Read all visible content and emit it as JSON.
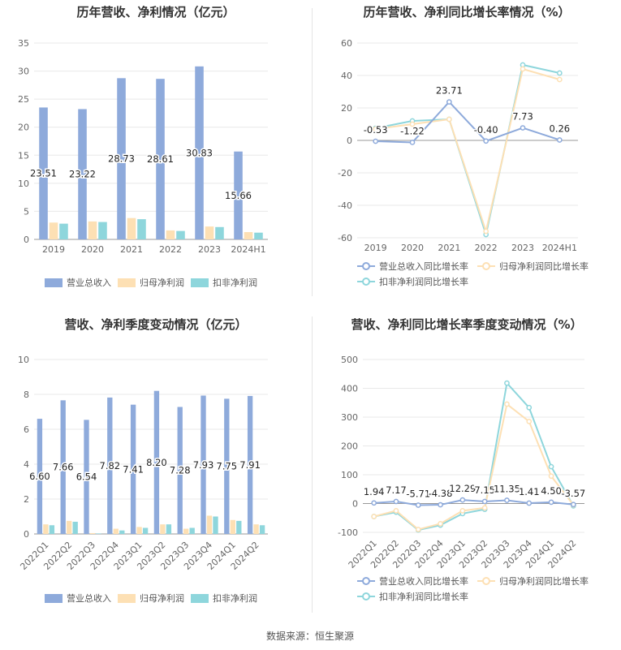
{
  "source": "数据来源：恒生聚源",
  "colors": {
    "revenue": "#8eaadb",
    "net_profit": "#fde0b4",
    "deducted_profit": "#8ed6dc",
    "revenue_line": "#8eaadb",
    "net_profit_line": "#fde0b4",
    "deducted_line": "#8ed6dc",
    "grid": "#e8e8e8",
    "axis": "#888888",
    "text": "#333333"
  },
  "chart_data": [
    {
      "id": "annual-revenue-profit",
      "type": "bar",
      "title": "历年营收、净利情况（亿元）",
      "categories": [
        "2019",
        "2020",
        "2021",
        "2022",
        "2023",
        "2024H1"
      ],
      "ylim": [
        0,
        35
      ],
      "yticks": [
        0,
        5,
        10,
        15,
        20,
        25,
        30,
        35
      ],
      "series": [
        {
          "name": "营业总收入",
          "values": [
            23.51,
            23.22,
            28.73,
            28.61,
            30.83,
            15.66
          ],
          "labels": [
            "23.51",
            "23.22",
            "28.73",
            "28.61",
            "30.83",
            "15.66"
          ]
        },
        {
          "name": "归母净利润",
          "values": [
            3.0,
            3.2,
            3.8,
            1.6,
            2.3,
            1.3
          ]
        },
        {
          "name": "扣非净利润",
          "values": [
            2.8,
            3.1,
            3.6,
            1.5,
            2.2,
            1.2
          ]
        }
      ],
      "legend": "bottom"
    },
    {
      "id": "annual-growth",
      "type": "line",
      "title": "历年营收、净利同比增长率情况（%）",
      "categories": [
        "2019",
        "2020",
        "2021",
        "2022",
        "2023",
        "2024H1"
      ],
      "ylim": [
        -60,
        60
      ],
      "yticks": [
        -60,
        -40,
        -20,
        0,
        20,
        40,
        60
      ],
      "series": [
        {
          "name": "营业总收入同比增长率",
          "values": [
            -0.53,
            -1.22,
            23.71,
            -0.4,
            7.73,
            0.26
          ],
          "labels": [
            "-0.53",
            "-1.22",
            "23.71",
            "-0.40",
            "7.73",
            "0.26"
          ]
        },
        {
          "name": "归母净利润同比增长率",
          "values": [
            7.0,
            10.0,
            13.0,
            -56.0,
            44.0,
            37.5
          ]
        },
        {
          "name": "扣非净利润同比增长率",
          "values": [
            7.5,
            12.0,
            13.0,
            -58.0,
            46.5,
            41.5
          ]
        }
      ],
      "legend": "bottom"
    },
    {
      "id": "quarterly-revenue-profit",
      "type": "bar",
      "title": "营收、净利季度变动情况（亿元）",
      "categories": [
        "2022Q1",
        "2022Q2",
        "2022Q3",
        "2022Q4",
        "2023Q1",
        "2023Q2",
        "2023Q3",
        "2023Q4",
        "2024Q1",
        "2024Q2"
      ],
      "ylim": [
        0,
        10
      ],
      "yticks": [
        0,
        2,
        4,
        6,
        8,
        10
      ],
      "series": [
        {
          "name": "营业总收入",
          "values": [
            6.6,
            7.66,
            6.54,
            7.82,
            7.41,
            8.2,
            7.28,
            7.93,
            7.75,
            7.91
          ],
          "labels": [
            "6.60",
            "7.66",
            "6.54",
            "7.82",
            "7.41",
            "8.20",
            "7.28",
            "7.93",
            "7.75",
            "7.91"
          ]
        },
        {
          "name": "归母净利润",
          "values": [
            0.55,
            0.75,
            0.05,
            0.3,
            0.4,
            0.55,
            0.3,
            1.05,
            0.8,
            0.55
          ]
        },
        {
          "name": "扣非净利润",
          "values": [
            0.5,
            0.7,
            0.03,
            0.2,
            0.35,
            0.55,
            0.35,
            1.0,
            0.75,
            0.5
          ]
        }
      ],
      "legend": "bottom"
    },
    {
      "id": "quarterly-growth",
      "type": "line",
      "title": "营收、净利同比增长率季度变动情况（%）",
      "categories": [
        "2022Q1",
        "2022Q2",
        "2022Q3",
        "2022Q4",
        "2023Q1",
        "2023Q2",
        "2023Q3",
        "2023Q4",
        "2024Q1",
        "2024Q2"
      ],
      "ylim": [
        -100,
        500
      ],
      "yticks": [
        -100,
        0,
        100,
        200,
        300,
        400,
        500
      ],
      "series": [
        {
          "name": "营业总收入同比增长率",
          "values": [
            1.94,
            7.17,
            -5.71,
            -4.38,
            12.29,
            7.15,
            11.35,
            1.41,
            4.5,
            -3.57
          ],
          "labels": [
            "1.94",
            "7.17",
            "-5.71",
            "-4.38",
            "12.29",
            "7.15",
            "11.35",
            "1.41",
            "4.50",
            "-3.57"
          ]
        },
        {
          "name": "归母净利润同比增长率",
          "values": [
            -45,
            -25,
            -90,
            -70,
            -25,
            -15,
            345,
            285,
            95,
            -5
          ]
        },
        {
          "name": "扣非净利润同比增长率",
          "values": [
            -45,
            -30,
            -92,
            -75,
            -35,
            -20,
            418,
            333,
            128,
            -8
          ]
        }
      ],
      "legend": "bottom"
    }
  ]
}
